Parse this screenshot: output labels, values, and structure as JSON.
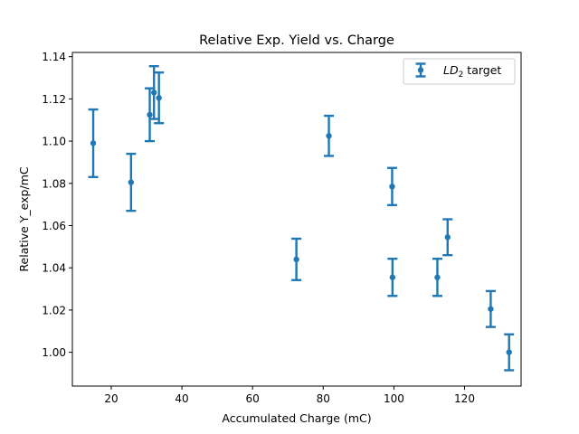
{
  "chart_data": {
    "type": "scatter",
    "title": "Relative Exp. Yield vs. Charge",
    "xlabel": "Accumulated Charge (mC)",
    "ylabel": "Relative Y_exp/mC",
    "xlim": [
      9,
      136
    ],
    "ylim": [
      0.984,
      1.142
    ],
    "xticks": [
      20,
      40,
      60,
      80,
      100,
      120
    ],
    "yticks": [
      1.0,
      1.02,
      1.04,
      1.06,
      1.08,
      1.1,
      1.12,
      1.14
    ],
    "xtick_labels": [
      "20",
      "40",
      "60",
      "80",
      "100",
      "120"
    ],
    "ytick_labels": [
      "1.00",
      "1.02",
      "1.04",
      "1.06",
      "1.08",
      "1.10",
      "1.12",
      "1.14"
    ],
    "grid": false,
    "legend_position": "top-right",
    "series": [
      {
        "name_main": "LD",
        "name_sub": "2",
        "name_suffix": " target",
        "color": "#1f77b4",
        "points": [
          {
            "x": 14.9,
            "y": 1.099,
            "err": 0.016
          },
          {
            "x": 25.6,
            "y": 1.0805,
            "err": 0.0135
          },
          {
            "x": 30.9,
            "y": 1.1125,
            "err": 0.0125
          },
          {
            "x": 32.1,
            "y": 1.123,
            "err": 0.0125
          },
          {
            "x": 33.5,
            "y": 1.1205,
            "err": 0.012
          },
          {
            "x": 72.4,
            "y": 1.044,
            "err": 0.0098
          },
          {
            "x": 81.6,
            "y": 1.1025,
            "err": 0.0095
          },
          {
            "x": 99.5,
            "y": 1.0785,
            "err": 0.0088
          },
          {
            "x": 99.6,
            "y": 1.0355,
            "err": 0.0088
          },
          {
            "x": 112.3,
            "y": 1.0355,
            "err": 0.0088
          },
          {
            "x": 115.2,
            "y": 1.0545,
            "err": 0.0085
          },
          {
            "x": 127.4,
            "y": 1.0205,
            "err": 0.0085
          },
          {
            "x": 132.6,
            "y": 1.0,
            "err": 0.0085
          }
        ]
      }
    ]
  }
}
